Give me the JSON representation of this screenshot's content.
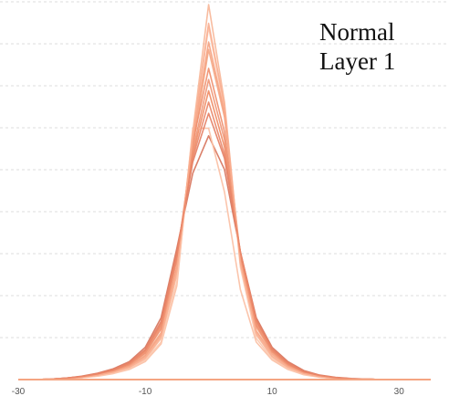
{
  "chart_data": {
    "type": "line",
    "title": "Normal",
    "subtitle": "Layer 1",
    "xlabel": "",
    "ylabel": "",
    "xlim": [
      -30,
      35
    ],
    "ylim": [
      0,
      1
    ],
    "x_ticks": [
      -30,
      -10,
      10,
      30
    ],
    "x_tick_labels": [
      "-30",
      "-10",
      "10",
      "30"
    ],
    "grid": "horizontal dashed",
    "legend": "none",
    "x": [
      -30,
      -27.5,
      -25,
      -22.5,
      -20,
      -17.5,
      -15,
      -12.5,
      -10,
      -7.5,
      -5,
      -2.5,
      0,
      2.5,
      5,
      7.5,
      10,
      12.5,
      15,
      17.5,
      20,
      22.5,
      25,
      27.5,
      30,
      32.5,
      35
    ],
    "series": [
      {
        "color": "#f4a582",
        "values": [
          0,
          0,
          0.001,
          0.003,
          0.007,
          0.013,
          0.022,
          0.037,
          0.065,
          0.125,
          0.3,
          0.62,
          0.88,
          0.7,
          0.33,
          0.14,
          0.072,
          0.038,
          0.018,
          0.009,
          0.004,
          0.002,
          0.001,
          0,
          0,
          0,
          0
        ]
      },
      {
        "color": "#f7b596",
        "values": [
          0,
          0,
          0.001,
          0.003,
          0.006,
          0.011,
          0.019,
          0.031,
          0.055,
          0.11,
          0.28,
          0.66,
          1.0,
          0.74,
          0.31,
          0.12,
          0.06,
          0.031,
          0.015,
          0.008,
          0.004,
          0.002,
          0.001,
          0,
          0,
          0,
          0
        ]
      },
      {
        "color": "#ef8a62",
        "values": [
          0,
          0,
          0.001,
          0.004,
          0.008,
          0.015,
          0.025,
          0.042,
          0.075,
          0.145,
          0.33,
          0.6,
          0.77,
          0.62,
          0.34,
          0.155,
          0.078,
          0.042,
          0.021,
          0.01,
          0.005,
          0.002,
          0.001,
          0,
          0,
          0,
          0
        ]
      },
      {
        "color": "#d6725a",
        "values": [
          0,
          0,
          0.001,
          0.004,
          0.009,
          0.017,
          0.029,
          0.048,
          0.086,
          0.165,
          0.35,
          0.55,
          0.65,
          0.56,
          0.34,
          0.165,
          0.086,
          0.048,
          0.024,
          0.012,
          0.006,
          0.003,
          0.001,
          0,
          0,
          0,
          0
        ]
      },
      {
        "color": "#fbbfa3",
        "values": [
          0,
          0,
          0.001,
          0.002,
          0.005,
          0.009,
          0.016,
          0.027,
          0.048,
          0.095,
          0.25,
          0.67,
          0.67,
          0.5,
          0.24,
          0.1,
          0.052,
          0.027,
          0.013,
          0.006,
          0.003,
          0.001,
          0,
          0,
          0,
          0,
          0
        ]
      },
      {
        "color": "#f08d6a",
        "values": [
          0,
          0,
          0.001,
          0.003,
          0.007,
          0.014,
          0.024,
          0.04,
          0.07,
          0.135,
          0.32,
          0.63,
          0.83,
          0.66,
          0.33,
          0.145,
          0.075,
          0.04,
          0.019,
          0.01,
          0.005,
          0.002,
          0.001,
          0,
          0,
          0,
          0
        ]
      },
      {
        "color": "#e47d62",
        "values": [
          0,
          0,
          0.001,
          0.004,
          0.008,
          0.016,
          0.027,
          0.045,
          0.08,
          0.155,
          0.34,
          0.58,
          0.71,
          0.59,
          0.34,
          0.16,
          0.082,
          0.045,
          0.022,
          0.011,
          0.005,
          0.002,
          0.001,
          0,
          0,
          0,
          0
        ]
      },
      {
        "color": "#fcc6ad",
        "values": [
          0,
          0,
          0.001,
          0.002,
          0.005,
          0.01,
          0.017,
          0.029,
          0.052,
          0.1,
          0.26,
          0.65,
          0.94,
          0.72,
          0.3,
          0.11,
          0.055,
          0.029,
          0.014,
          0.007,
          0.003,
          0.001,
          0,
          0,
          0,
          0,
          0
        ]
      },
      {
        "color": "#f5a07e",
        "values": [
          0,
          0,
          0.001,
          0.003,
          0.006,
          0.012,
          0.021,
          0.035,
          0.062,
          0.12,
          0.3,
          0.64,
          0.9,
          0.71,
          0.32,
          0.13,
          0.068,
          0.036,
          0.017,
          0.008,
          0.004,
          0.002,
          0.001,
          0,
          0,
          0,
          0
        ]
      },
      {
        "color": "#ee9473",
        "values": [
          0,
          0,
          0.001,
          0.003,
          0.007,
          0.014,
          0.024,
          0.041,
          0.072,
          0.14,
          0.32,
          0.61,
          0.8,
          0.64,
          0.33,
          0.15,
          0.076,
          0.041,
          0.02,
          0.01,
          0.005,
          0.002,
          0.001,
          0,
          0,
          0,
          0
        ]
      },
      {
        "color": "#f9ad8f",
        "values": [
          0,
          0,
          0.001,
          0.003,
          0.006,
          0.012,
          0.02,
          0.033,
          0.058,
          0.115,
          0.29,
          0.65,
          0.95,
          0.73,
          0.31,
          0.125,
          0.063,
          0.033,
          0.016,
          0.008,
          0.004,
          0.002,
          0.001,
          0,
          0,
          0,
          0
        ]
      },
      {
        "color": "#e98567",
        "values": [
          0,
          0,
          0.001,
          0.004,
          0.008,
          0.015,
          0.026,
          0.043,
          0.078,
          0.15,
          0.33,
          0.59,
          0.74,
          0.6,
          0.34,
          0.158,
          0.08,
          0.043,
          0.021,
          0.011,
          0.005,
          0.002,
          0.001,
          0,
          0,
          0,
          0
        ]
      }
    ]
  }
}
